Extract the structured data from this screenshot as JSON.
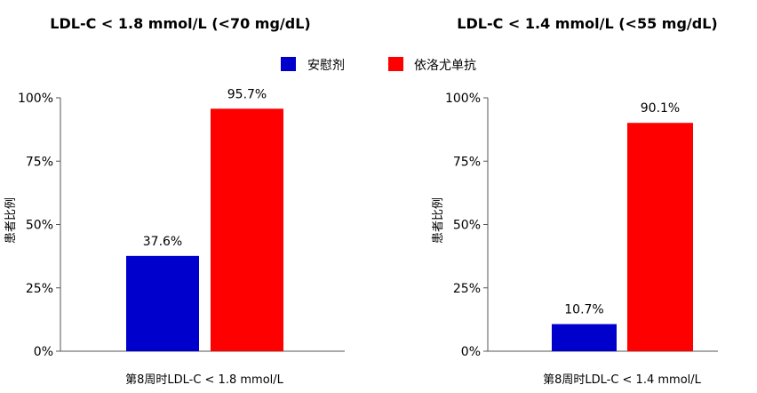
{
  "legend": {
    "items": [
      {
        "label": "安慰剂",
        "color": "#0000cc"
      },
      {
        "label": "依洛尤单抗",
        "color": "#ff0000"
      }
    ]
  },
  "chart_data": [
    {
      "type": "bar",
      "title": "LDL-C < 1.8 mmol/L (<70 mg/dL)",
      "xlabel": "第8周时LDL-C < 1.8 mmol/L",
      "ylabel": "患者比例",
      "ylim": [
        0,
        100
      ],
      "yticks": [
        "0%",
        "25%",
        "50%",
        "75%",
        "100%"
      ],
      "series": [
        {
          "name": "安慰剂",
          "values": [
            37.6
          ],
          "labels": [
            "37.6%"
          ],
          "color": "#0000cc"
        },
        {
          "name": "依洛尤单抗",
          "values": [
            95.7
          ],
          "labels": [
            "95.7%"
          ],
          "color": "#ff0000"
        }
      ]
    },
    {
      "type": "bar",
      "title": "LDL-C < 1.4 mmol/L (<55 mg/dL)",
      "xlabel": "第8周时LDL-C < 1.4 mmol/L",
      "ylabel": "患者比例",
      "ylim": [
        0,
        100
      ],
      "yticks": [
        "0%",
        "25%",
        "50%",
        "75%",
        "100%"
      ],
      "series": [
        {
          "name": "安慰剂",
          "values": [
            10.7
          ],
          "labels": [
            "10.7%"
          ],
          "color": "#0000cc"
        },
        {
          "name": "依洛尤单抗",
          "values": [
            90.1
          ],
          "labels": [
            "90.1%"
          ],
          "color": "#ff0000"
        }
      ]
    }
  ]
}
